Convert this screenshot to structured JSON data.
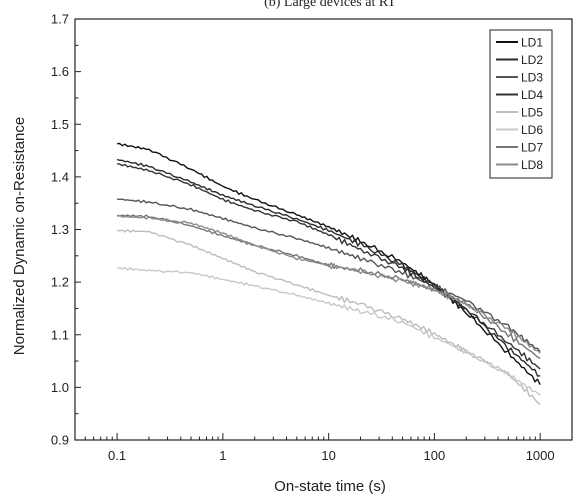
{
  "chart_data": {
    "type": "line",
    "title": "(b)    Large devices at RT",
    "xlabel": "On-state time (s)",
    "ylabel": "Normalized Dynamic on-Resistance",
    "x_scale": "log",
    "xlim": [
      0.04,
      2000
    ],
    "ylim": [
      0.9,
      1.7
    ],
    "x_ticks": [
      0.1,
      1,
      10,
      100,
      1000
    ],
    "x_tick_labels": [
      "0.1",
      "1",
      "10",
      "100",
      "1000"
    ],
    "y_ticks": [
      0.9,
      1.0,
      1.1,
      1.2,
      1.3,
      1.4,
      1.5,
      1.6,
      1.7
    ],
    "y_tick_labels": [
      "0.9",
      "1.0",
      "1.1",
      "1.2",
      "1.3",
      "1.4",
      "1.5",
      "1.6",
      "1.7"
    ],
    "grid": false,
    "legend_position": "top-right",
    "x": [
      0.1,
      0.2,
      0.5,
      1,
      2,
      5,
      10,
      20,
      50,
      100,
      200,
      500,
      1000
    ],
    "series": [
      {
        "name": "LD1",
        "color": "#111111",
        "values": [
          1.463,
          1.452,
          1.415,
          1.382,
          1.357,
          1.328,
          1.305,
          1.278,
          1.237,
          1.195,
          1.142,
          1.065,
          1.005
        ]
      },
      {
        "name": "LD2",
        "color": "#2a2a2a",
        "values": [
          1.433,
          1.42,
          1.39,
          1.365,
          1.345,
          1.32,
          1.298,
          1.272,
          1.232,
          1.195,
          1.148,
          1.075,
          1.022
        ]
      },
      {
        "name": "LD3",
        "color": "#555555",
        "values": [
          1.358,
          1.352,
          1.338,
          1.321,
          1.303,
          1.283,
          1.265,
          1.245,
          1.218,
          1.192,
          1.165,
          1.115,
          1.068
        ]
      },
      {
        "name": "LD4",
        "color": "#333333",
        "values": [
          1.425,
          1.412,
          1.385,
          1.357,
          1.336,
          1.315,
          1.29,
          1.262,
          1.227,
          1.19,
          1.148,
          1.085,
          1.035
        ]
      },
      {
        "name": "LD5",
        "color": "#bdbdbd",
        "values": [
          1.298,
          1.296,
          1.27,
          1.245,
          1.22,
          1.195,
          1.175,
          1.158,
          1.13,
          1.102,
          1.068,
          1.025,
          0.968
        ]
      },
      {
        "name": "LD6",
        "color": "#c8c8c8",
        "values": [
          1.227,
          1.222,
          1.218,
          1.205,
          1.193,
          1.175,
          1.16,
          1.145,
          1.124,
          1.095,
          1.068,
          1.025,
          0.985
        ]
      },
      {
        "name": "LD7",
        "color": "#777777",
        "values": [
          1.327,
          1.325,
          1.307,
          1.288,
          1.27,
          1.25,
          1.232,
          1.222,
          1.205,
          1.186,
          1.16,
          1.1,
          1.055
        ]
      },
      {
        "name": "LD8",
        "color": "#8a8a8a",
        "values": [
          1.325,
          1.322,
          1.312,
          1.293,
          1.27,
          1.245,
          1.232,
          1.22,
          1.203,
          1.185,
          1.158,
          1.11,
          1.065
        ]
      }
    ]
  }
}
